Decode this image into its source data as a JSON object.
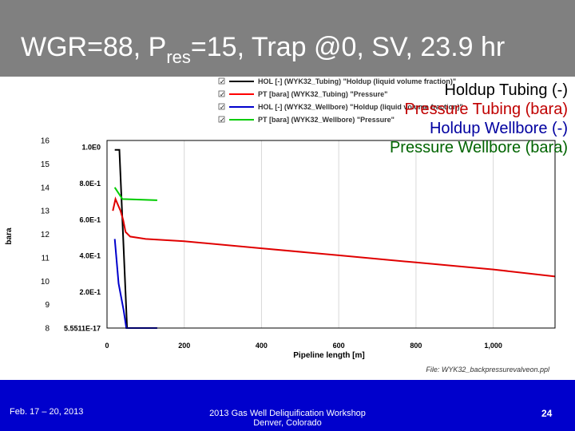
{
  "title": {
    "main": "WGR=88, P",
    "sub": "res",
    "rest": "=15, Trap @0, SV, 23.9 hr"
  },
  "overlay_labels": [
    {
      "text": "Holdup Tubing (-)",
      "color": "#000000"
    },
    {
      "text": "Pressure Tubing (bara)",
      "color": "#c00000"
    },
    {
      "text": "Holdup Wellbore (-)",
      "color": "#0000a0"
    },
    {
      "text": "Pressure Wellbore (bara)",
      "color": "#006400"
    }
  ],
  "chart_data": {
    "type": "line",
    "xlabel": "Pipeline length [m]",
    "ylabel_left": "bara",
    "xlim": [
      0,
      1160
    ],
    "ylim_left": [
      8,
      16
    ],
    "ylim_right": [
      5.55e-17,
      1.0
    ],
    "x_ticks": [
      "0",
      "200",
      "400",
      "600",
      "800",
      "1,000"
    ],
    "x_tick_values": [
      0,
      200,
      400,
      600,
      800,
      1000
    ],
    "y_left_ticks": [
      "16",
      "15",
      "14",
      "13",
      "12",
      "11",
      "10",
      "9",
      "8"
    ],
    "y_right_ticks": [
      "1.0E0",
      "8.0E-1",
      "6.0E-1",
      "4.0E-1",
      "2.0E-1",
      "5.5511E-17"
    ],
    "legend": [
      {
        "label": "HOL [-] (WYK32_Tubing) \"Holdup (liquid volume fraction)\"",
        "color": "#000000",
        "checked": true
      },
      {
        "label": "PT [bara] (WYK32_Tubing) \"Pressure\"",
        "color": "#ff0000",
        "checked": true
      },
      {
        "label": "HOL [-] (WYK32_Wellbore) \"Holdup (liquid volume fraction)\"",
        "color": "#0000cc",
        "checked": true
      },
      {
        "label": "PT [bara] (WYK32_Wellbore) \"Pressure\"",
        "color": "#00cc00",
        "checked": true
      }
    ],
    "series": [
      {
        "name": "HOL [-] (WYK32_Tubing)",
        "axis": "right",
        "color": "#000000",
        "x": [
          20,
          32,
          52,
          72
        ],
        "y": [
          1.0,
          1.0,
          0.0,
          0.0
        ]
      },
      {
        "name": "PT [bara] (WYK32_Tubing)",
        "axis": "left",
        "color": "#e00000",
        "x": [
          15,
          22,
          35,
          42,
          48,
          60,
          100,
          200,
          400,
          600,
          800,
          1000,
          1160
        ],
        "y": [
          13.0,
          13.5,
          13.0,
          12.6,
          12.1,
          11.9,
          11.8,
          11.7,
          11.4,
          11.1,
          10.8,
          10.5,
          10.2
        ]
      },
      {
        "name": "HOL [-] (WYK32_Wellbore)",
        "axis": "right",
        "color": "#0000cc",
        "x": [
          20,
          30,
          43,
          50,
          130
        ],
        "y": [
          0.5,
          0.25,
          0.1,
          0.0,
          0.0
        ]
      },
      {
        "name": "PT [bara] (WYK32_Wellbore)",
        "axis": "left",
        "color": "#00cc00",
        "x": [
          20,
          40,
          130
        ],
        "y": [
          14.0,
          13.5,
          13.45
        ]
      }
    ]
  },
  "file_label": "File: WYK32_backpressurevalveon.ppl",
  "footer": {
    "date": "Feb. 17 – 20, 2013",
    "workshop_line1": "2013 Gas Well Deliquification Workshop",
    "workshop_line2": "Denver, Colorado",
    "page": "24"
  }
}
